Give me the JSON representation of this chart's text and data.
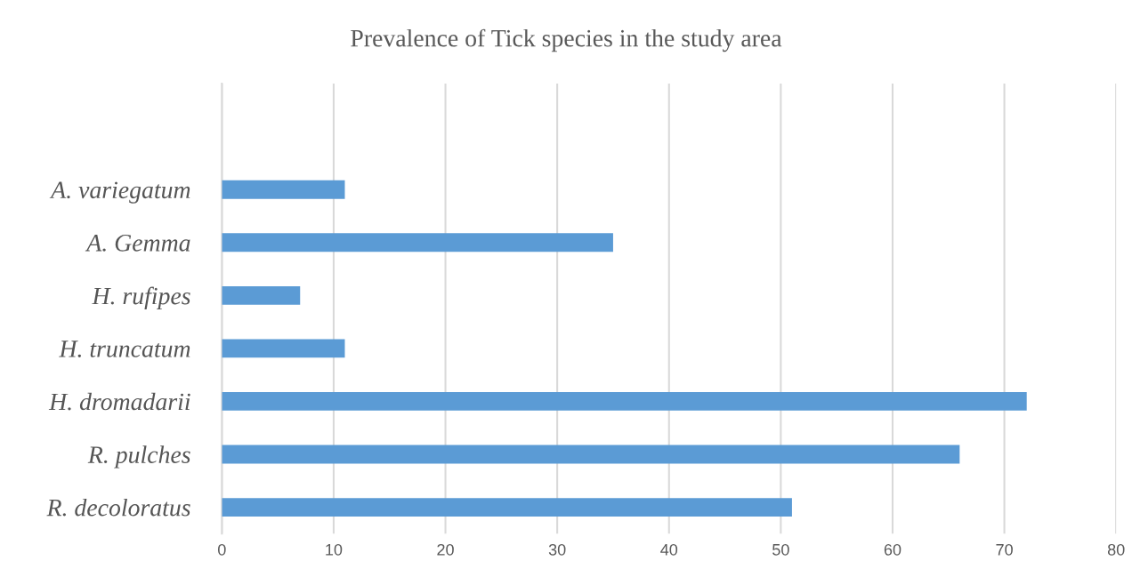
{
  "chart_data": {
    "type": "bar",
    "orientation": "horizontal",
    "title": "Prevalence of Tick species in the study area",
    "categories": [
      "A. variegatum",
      "A. Gemma",
      "H. rufipes",
      "H. truncatum",
      "H. dromadarii",
      "R. pulches",
      "R. decoloratus"
    ],
    "values": [
      11,
      35,
      7,
      11,
      72,
      66,
      51
    ],
    "color": "#5b9bd5",
    "xlim": [
      0,
      80
    ],
    "xticks": [
      0,
      10,
      20,
      30,
      40,
      50,
      60,
      70,
      80
    ],
    "grid": "x",
    "legend": false
  }
}
